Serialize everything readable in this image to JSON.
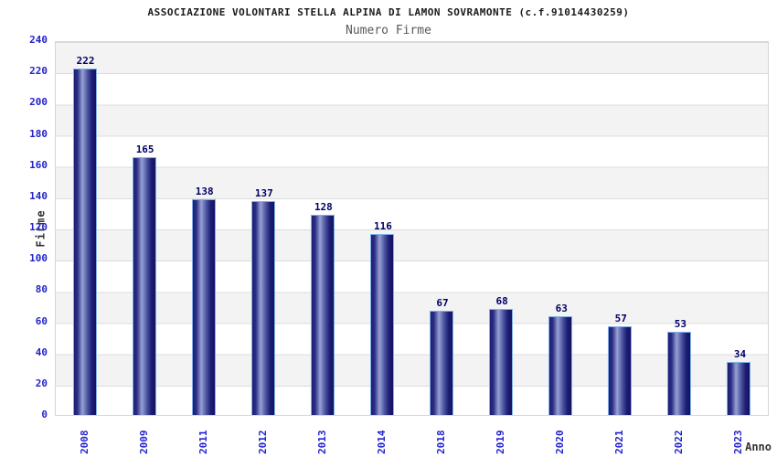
{
  "header": {
    "title": "ASSOCIAZIONE VOLONTARI STELLA ALPINA DI LAMON SOVRAMONTE (c.f.91014430259)",
    "subtitle": "Numero Firme"
  },
  "chart_data": {
    "type": "bar",
    "title": "ASSOCIAZIONE VOLONTARI STELLA ALPINA DI LAMON SOVRAMONTE (c.f.91014430259)",
    "subtitle": "Numero Firme",
    "categories": [
      "2008",
      "2009",
      "2011",
      "2012",
      "2013",
      "2014",
      "2018",
      "2019",
      "2020",
      "2021",
      "2022",
      "2023"
    ],
    "values": [
      222,
      165,
      138,
      137,
      128,
      116,
      67,
      68,
      63,
      57,
      53,
      34
    ],
    "xlabel": "Anno",
    "ylabel": "Firme",
    "ylim": [
      0,
      240
    ],
    "y_ticks": [
      0,
      20,
      40,
      60,
      80,
      100,
      120,
      140,
      160,
      180,
      200,
      220,
      240
    ],
    "grid": "horizontal-bands",
    "legend": "none"
  },
  "colors": {
    "tick_label": "#2323cc",
    "value_label": "#000066",
    "bar_edge_dark": "#1d1d73",
    "bar_highlight": "#98a1d3",
    "bar_dark_right": "#131364",
    "bar_border": "#7fb2e5",
    "band_gray": "#f3f3f3",
    "band_white": "#ffffff",
    "gridline": "#dcdcdc",
    "title_text": "#1a1a1a",
    "subtitle_text": "#5a5a5a",
    "axis_label_text": "#333333"
  }
}
